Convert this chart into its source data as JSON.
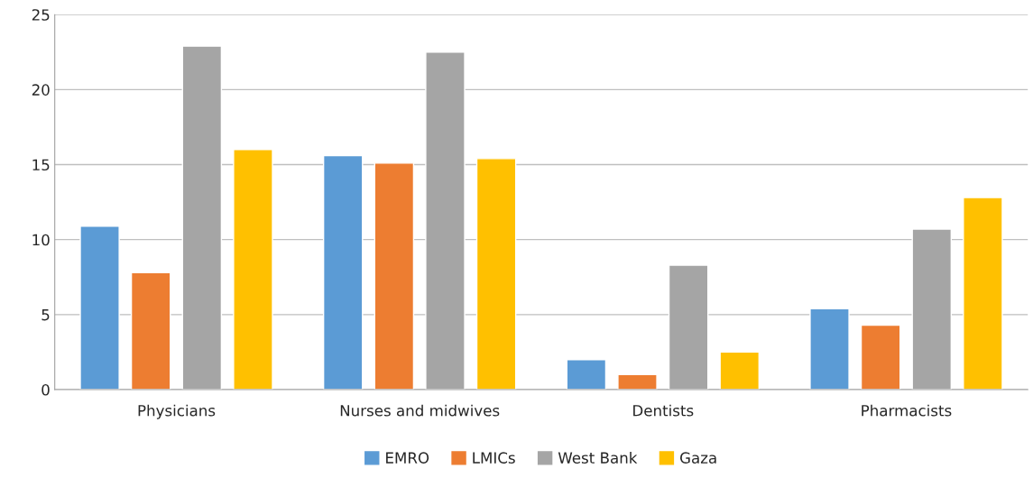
{
  "chart_data": {
    "type": "bar",
    "categories": [
      "Physicians",
      "Nurses and midwives",
      "Dentists",
      "Pharmacists"
    ],
    "series": [
      {
        "name": "EMRO",
        "color": "#5b9bd5",
        "values": [
          10.9,
          15.6,
          2.0,
          5.4
        ]
      },
      {
        "name": "LMICs",
        "color": "#ed7d31",
        "values": [
          7.8,
          15.1,
          1.0,
          4.3
        ]
      },
      {
        "name": "West Bank",
        "color": "#a5a5a5",
        "values": [
          22.9,
          22.5,
          8.3,
          10.7
        ]
      },
      {
        "name": "Gaza",
        "color": "#ffc000",
        "values": [
          16.0,
          15.4,
          2.5,
          12.8
        ]
      }
    ],
    "ylim": [
      0,
      25
    ],
    "yticks": [
      0,
      5,
      10,
      15,
      20,
      25
    ],
    "grid": "y",
    "legend": "bottom"
  }
}
